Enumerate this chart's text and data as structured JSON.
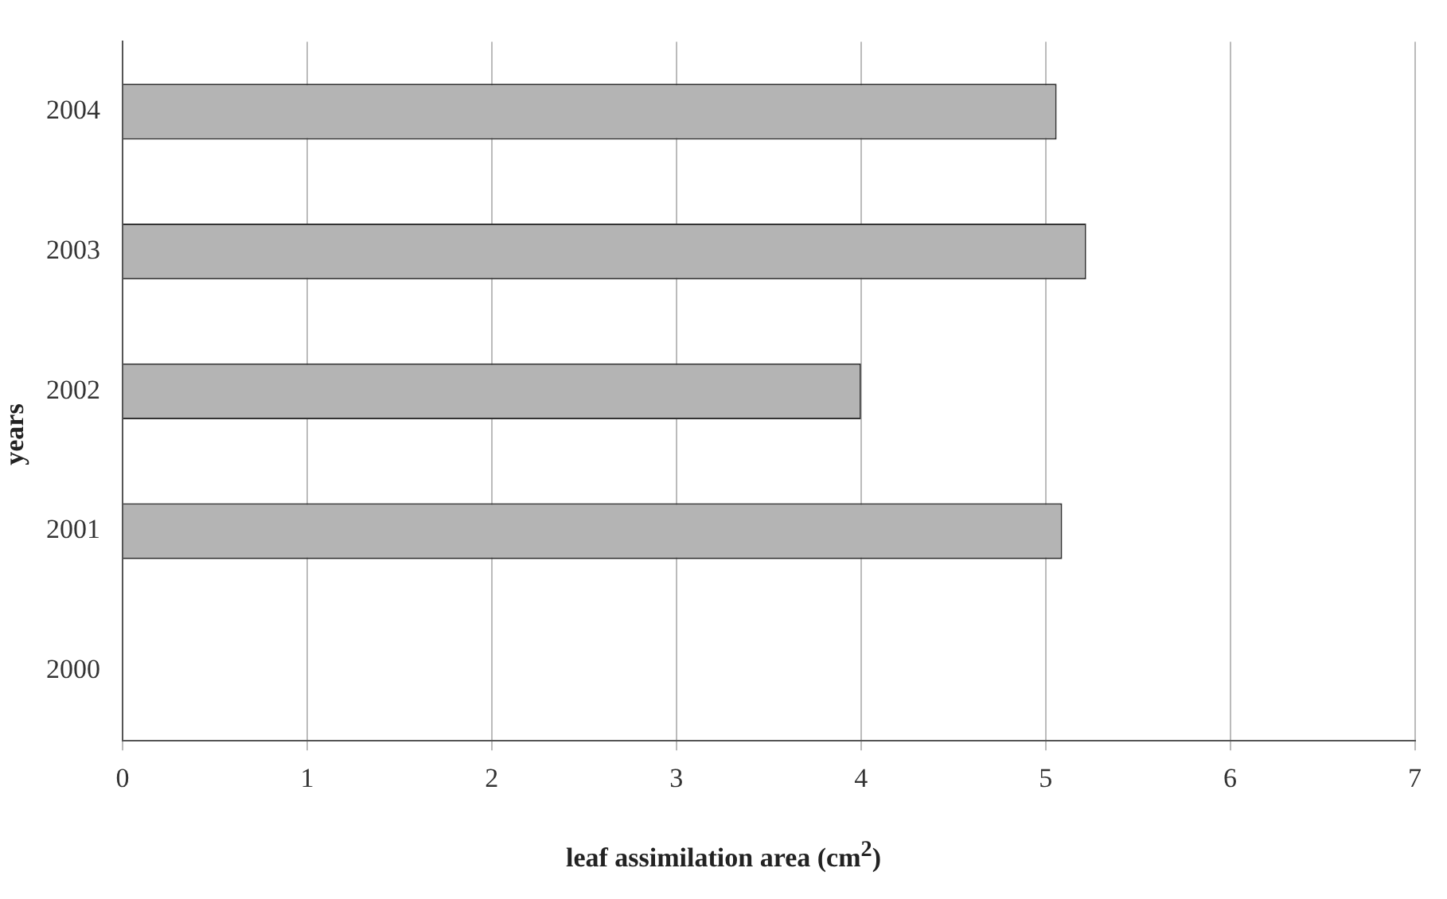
{
  "chart_data": {
    "type": "bar",
    "orientation": "horizontal",
    "categories": [
      "2004",
      "2003",
      "2002",
      "2001",
      "2000"
    ],
    "values": [
      5.06,
      5.22,
      4.0,
      5.09,
      null
    ],
    "color": "#b4b4b4",
    "xlim": [
      0,
      7
    ],
    "xticks": [
      0,
      1,
      2,
      3,
      4,
      5,
      6,
      7
    ],
    "grid": "x",
    "legend": false,
    "xlabel": "leaf assimilation area (cm$^{2}$)",
    "ylabel": "years"
  }
}
